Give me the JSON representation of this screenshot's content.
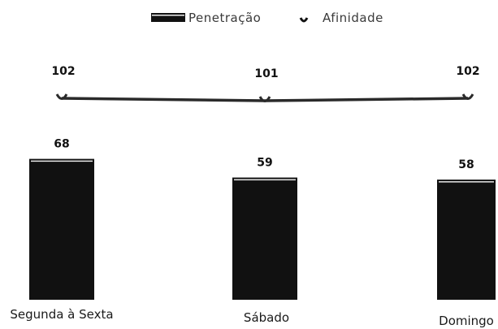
{
  "chart_data": {
    "type": "bar",
    "categories": [
      "Segunda à Sexta",
      "Sábado",
      "Domingo"
    ],
    "series": [
      {
        "name": "Penetração",
        "type": "bar",
        "values": [
          68,
          59,
          58
        ]
      },
      {
        "name": "Afinidade",
        "type": "line",
        "values": [
          102,
          101,
          102
        ]
      }
    ],
    "legend": {
      "placement": "top",
      "items": [
        "Penetração",
        "Afinidade"
      ]
    },
    "grid": false,
    "colors": {
      "bar": "#111111",
      "line": "#2a2a2a"
    }
  }
}
